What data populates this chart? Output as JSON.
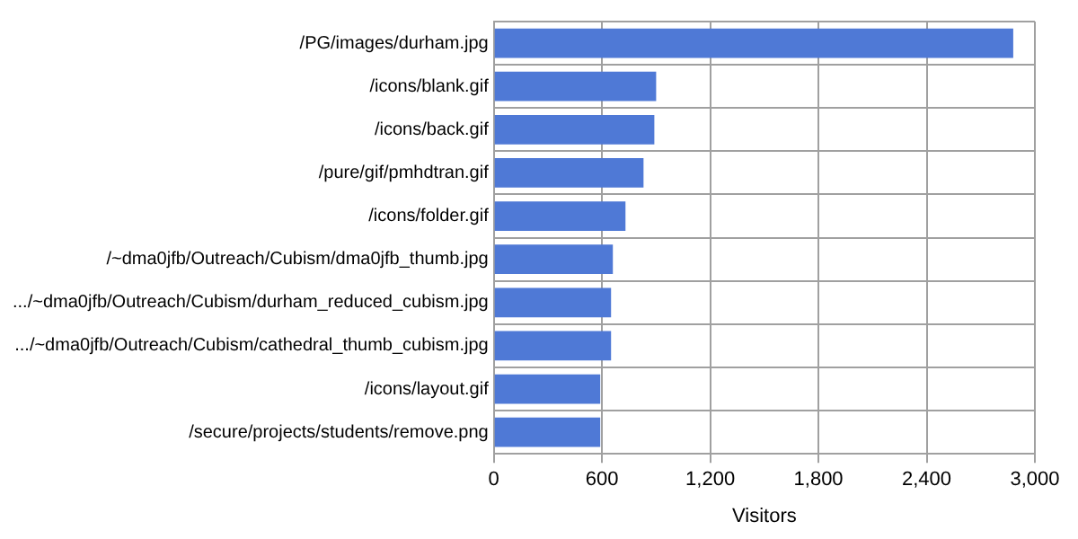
{
  "chart_data": {
    "type": "bar",
    "orientation": "horizontal",
    "xlabel": "Visitors",
    "categories": [
      "/PG/images/durham.jpg",
      "/icons/blank.gif",
      "/icons/back.gif",
      "/pure/gif/pmhdtran.gif",
      "/icons/folder.gif",
      "/~dma0jfb/Outreach/Cubism/dma0jfb_thumb.jpg",
      ".../~dma0jfb/Outreach/Cubism/durham_reduced_cubism.jpg",
      ".../~dma0jfb/Outreach/Cubism/cathedral_thumb_cubism.jpg",
      "/icons/layout.gif",
      "/secure/projects/students/remove.png"
    ],
    "values": [
      2880,
      900,
      890,
      830,
      730,
      660,
      650,
      650,
      590,
      590
    ],
    "color": "#4f79d6",
    "xlim": [
      0,
      3000
    ],
    "xticks": [
      0,
      {
        "value": 600,
        "label": "600"
      },
      {
        "value": 1200,
        "label": "1,200"
      },
      {
        "value": 1800,
        "label": "1,800"
      },
      {
        "value": 2400,
        "label": "2,400"
      },
      {
        "value": 3000,
        "label": "3,000"
      }
    ],
    "grid": true
  }
}
